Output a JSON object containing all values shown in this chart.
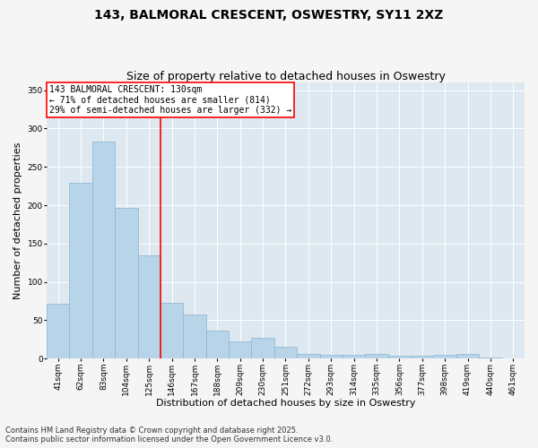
{
  "title": "143, BALMORAL CRESCENT, OSWESTRY, SY11 2XZ",
  "subtitle": "Size of property relative to detached houses in Oswestry",
  "xlabel": "Distribution of detached houses by size in Oswestry",
  "ylabel": "Number of detached properties",
  "categories": [
    "41sqm",
    "62sqm",
    "83sqm",
    "104sqm",
    "125sqm",
    "146sqm",
    "167sqm",
    "188sqm",
    "209sqm",
    "230sqm",
    "251sqm",
    "272sqm",
    "293sqm",
    "314sqm",
    "335sqm",
    "356sqm",
    "377sqm",
    "398sqm",
    "419sqm",
    "440sqm",
    "461sqm"
  ],
  "values": [
    71,
    229,
    283,
    196,
    135,
    73,
    57,
    36,
    22,
    27,
    15,
    6,
    5,
    5,
    6,
    4,
    4,
    5,
    6,
    2,
    0
  ],
  "bar_color": "#b8d4e8",
  "bar_edge_color": "#8ab4d0",
  "vline_index": 4,
  "vline_color": "red",
  "annotation_title": "143 BALMORAL CRESCENT: 130sqm",
  "annotation_line1": "← 71% of detached houses are smaller (814)",
  "annotation_line2": "29% of semi-detached houses are larger (332) →",
  "ylim": [
    0,
    360
  ],
  "yticks": [
    0,
    50,
    100,
    150,
    200,
    250,
    300,
    350
  ],
  "footer_line1": "Contains HM Land Registry data © Crown copyright and database right 2025.",
  "footer_line2": "Contains public sector information licensed under the Open Government Licence v3.0.",
  "bg_color": "#dde8f0",
  "fig_bg_color": "#f5f5f5",
  "title_fontsize": 10,
  "subtitle_fontsize": 9,
  "axis_label_fontsize": 8,
  "tick_fontsize": 6.5,
  "footer_fontsize": 6,
  "annotation_fontsize": 7
}
